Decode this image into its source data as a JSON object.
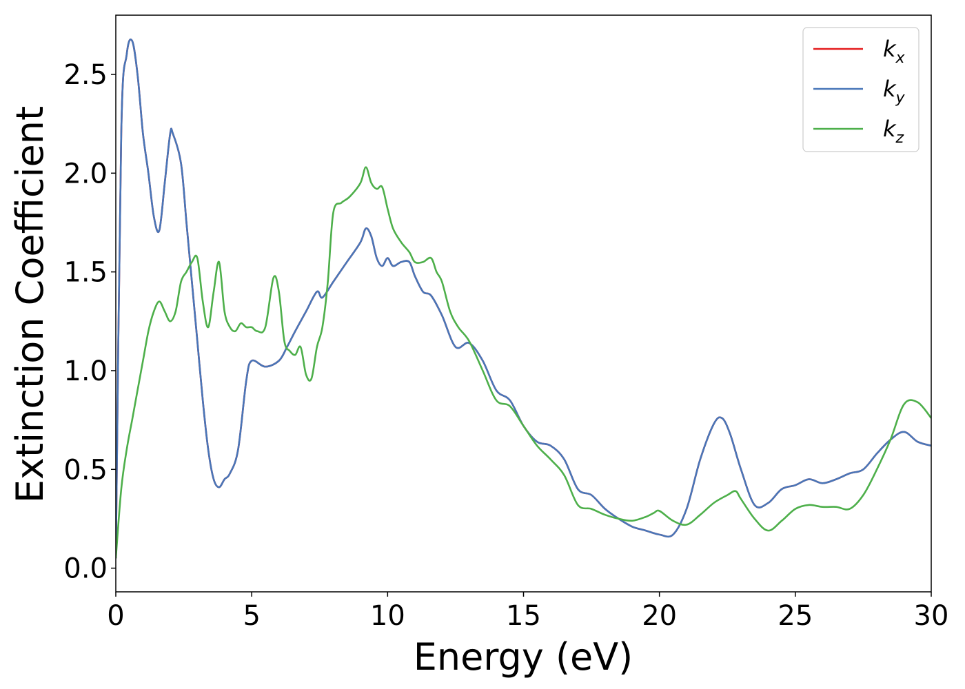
{
  "chart_data": {
    "type": "line",
    "xlabel": "Energy (eV)",
    "ylabel": "Extinction Coefficient",
    "xlim": [
      0,
      30
    ],
    "ylim": [
      -0.12,
      2.8
    ],
    "xticks": [
      "0",
      "5",
      "10",
      "15",
      "20",
      "25",
      "30"
    ],
    "yticks": [
      "0.0",
      "0.5",
      "1.0",
      "1.5",
      "2.0",
      "2.5"
    ],
    "legend_position": "top-right",
    "grid": false,
    "series": [
      {
        "name": "k_x",
        "label_base": "k",
        "label_sub": "x",
        "color": "#e41a1c",
        "x": [
          0,
          0.2,
          0.4,
          0.6,
          0.8,
          1.0,
          1.2,
          1.4,
          1.6,
          1.8,
          2.0,
          2.1,
          2.4,
          2.6,
          2.8,
          3.0,
          3.2,
          3.4,
          3.6,
          3.8,
          4.0,
          4.2,
          4.5,
          4.8,
          5.0,
          5.5,
          6.0,
          6.3,
          6.6,
          7.0,
          7.4,
          7.6,
          8.0,
          8.5,
          9.0,
          9.2,
          9.4,
          9.6,
          9.8,
          10.0,
          10.2,
          10.5,
          10.8,
          11.0,
          11.3,
          11.6,
          12.0,
          12.5,
          13.0,
          13.5,
          14.0,
          14.5,
          15.0,
          15.5,
          16.0,
          16.5,
          17.0,
          17.5,
          18.0,
          18.5,
          19.0,
          19.5,
          20.0,
          20.5,
          21.0,
          21.5,
          22.0,
          22.3,
          22.6,
          23.0,
          23.5,
          24.0,
          24.5,
          25.0,
          25.5,
          26.0,
          26.5,
          27.0,
          27.5,
          28.0,
          28.5,
          29.0,
          29.5,
          30.0
        ],
        "y": [
          0.05,
          2.2,
          2.6,
          2.67,
          2.5,
          2.2,
          2.0,
          1.78,
          1.71,
          1.95,
          2.2,
          2.2,
          2.05,
          1.75,
          1.45,
          1.15,
          0.85,
          0.6,
          0.45,
          0.41,
          0.45,
          0.48,
          0.6,
          0.95,
          1.05,
          1.02,
          1.05,
          1.12,
          1.2,
          1.3,
          1.4,
          1.37,
          1.45,
          1.55,
          1.65,
          1.72,
          1.68,
          1.57,
          1.53,
          1.57,
          1.53,
          1.55,
          1.55,
          1.48,
          1.4,
          1.38,
          1.28,
          1.12,
          1.14,
          1.05,
          0.9,
          0.85,
          0.72,
          0.64,
          0.62,
          0.55,
          0.4,
          0.37,
          0.3,
          0.25,
          0.21,
          0.19,
          0.17,
          0.17,
          0.3,
          0.55,
          0.73,
          0.76,
          0.68,
          0.5,
          0.32,
          0.33,
          0.4,
          0.42,
          0.45,
          0.43,
          0.45,
          0.48,
          0.5,
          0.58,
          0.65,
          0.69,
          0.64,
          0.62
        ]
      },
      {
        "name": "k_y",
        "label_base": "k",
        "label_sub": "y",
        "color": "#4876b8",
        "x": [
          0,
          0.2,
          0.4,
          0.6,
          0.8,
          1.0,
          1.2,
          1.4,
          1.6,
          1.8,
          2.0,
          2.1,
          2.4,
          2.6,
          2.8,
          3.0,
          3.2,
          3.4,
          3.6,
          3.8,
          4.0,
          4.2,
          4.5,
          4.8,
          5.0,
          5.5,
          6.0,
          6.3,
          6.6,
          7.0,
          7.4,
          7.6,
          8.0,
          8.5,
          9.0,
          9.2,
          9.4,
          9.6,
          9.8,
          10.0,
          10.2,
          10.5,
          10.8,
          11.0,
          11.3,
          11.6,
          12.0,
          12.5,
          13.0,
          13.5,
          14.0,
          14.5,
          15.0,
          15.5,
          16.0,
          16.5,
          17.0,
          17.5,
          18.0,
          18.5,
          19.0,
          19.5,
          20.0,
          20.5,
          21.0,
          21.5,
          22.0,
          22.3,
          22.6,
          23.0,
          23.5,
          24.0,
          24.5,
          25.0,
          25.5,
          26.0,
          26.5,
          27.0,
          27.5,
          28.0,
          28.5,
          29.0,
          29.5,
          30.0
        ],
        "y": [
          0.05,
          2.2,
          2.6,
          2.67,
          2.5,
          2.2,
          2.0,
          1.78,
          1.71,
          1.95,
          2.2,
          2.2,
          2.05,
          1.75,
          1.45,
          1.15,
          0.85,
          0.6,
          0.45,
          0.41,
          0.45,
          0.48,
          0.6,
          0.95,
          1.05,
          1.02,
          1.05,
          1.12,
          1.2,
          1.3,
          1.4,
          1.37,
          1.45,
          1.55,
          1.65,
          1.72,
          1.68,
          1.57,
          1.53,
          1.57,
          1.53,
          1.55,
          1.55,
          1.48,
          1.4,
          1.38,
          1.28,
          1.12,
          1.14,
          1.05,
          0.9,
          0.85,
          0.72,
          0.64,
          0.62,
          0.55,
          0.4,
          0.37,
          0.3,
          0.25,
          0.21,
          0.19,
          0.17,
          0.17,
          0.3,
          0.55,
          0.73,
          0.76,
          0.68,
          0.5,
          0.32,
          0.33,
          0.4,
          0.42,
          0.45,
          0.43,
          0.45,
          0.48,
          0.5,
          0.58,
          0.65,
          0.69,
          0.64,
          0.62
        ]
      },
      {
        "name": "k_z",
        "label_base": "k",
        "label_sub": "z",
        "color": "#4daf4a",
        "x": [
          0,
          0.2,
          0.4,
          0.6,
          0.8,
          1.0,
          1.2,
          1.4,
          1.6,
          1.8,
          2.0,
          2.2,
          2.4,
          2.6,
          2.8,
          3.0,
          3.2,
          3.4,
          3.6,
          3.8,
          4.0,
          4.2,
          4.4,
          4.6,
          4.8,
          5.0,
          5.2,
          5.5,
          5.8,
          6.0,
          6.2,
          6.4,
          6.6,
          6.8,
          7.0,
          7.2,
          7.4,
          7.6,
          7.8,
          8.0,
          8.3,
          8.6,
          9.0,
          9.2,
          9.4,
          9.6,
          9.8,
          10.0,
          10.2,
          10.5,
          10.8,
          11.0,
          11.3,
          11.6,
          11.8,
          12.0,
          12.3,
          12.6,
          13.0,
          13.5,
          14.0,
          14.5,
          15.0,
          15.5,
          16.0,
          16.5,
          17.0,
          17.5,
          18.0,
          18.5,
          19.0,
          19.5,
          19.8,
          20.0,
          20.5,
          21.0,
          21.5,
          22.0,
          22.5,
          22.8,
          23.0,
          23.5,
          24.0,
          24.5,
          25.0,
          25.5,
          26.0,
          26.5,
          27.0,
          27.5,
          28.0,
          28.5,
          29.0,
          29.5,
          30.0
        ],
        "y": [
          0.05,
          0.4,
          0.6,
          0.75,
          0.9,
          1.05,
          1.2,
          1.3,
          1.35,
          1.3,
          1.25,
          1.3,
          1.45,
          1.5,
          1.55,
          1.57,
          1.35,
          1.22,
          1.4,
          1.55,
          1.3,
          1.22,
          1.2,
          1.24,
          1.22,
          1.22,
          1.2,
          1.22,
          1.47,
          1.4,
          1.15,
          1.1,
          1.08,
          1.12,
          0.98,
          0.96,
          1.12,
          1.22,
          1.45,
          1.8,
          1.85,
          1.88,
          1.95,
          2.03,
          1.95,
          1.92,
          1.93,
          1.82,
          1.72,
          1.65,
          1.6,
          1.55,
          1.55,
          1.57,
          1.5,
          1.45,
          1.3,
          1.22,
          1.15,
          1.0,
          0.85,
          0.82,
          0.72,
          0.62,
          0.55,
          0.47,
          0.32,
          0.3,
          0.27,
          0.25,
          0.24,
          0.26,
          0.28,
          0.29,
          0.24,
          0.22,
          0.27,
          0.33,
          0.37,
          0.39,
          0.35,
          0.25,
          0.19,
          0.24,
          0.3,
          0.32,
          0.31,
          0.31,
          0.3,
          0.37,
          0.5,
          0.65,
          0.83,
          0.84,
          0.76
        ]
      }
    ]
  }
}
